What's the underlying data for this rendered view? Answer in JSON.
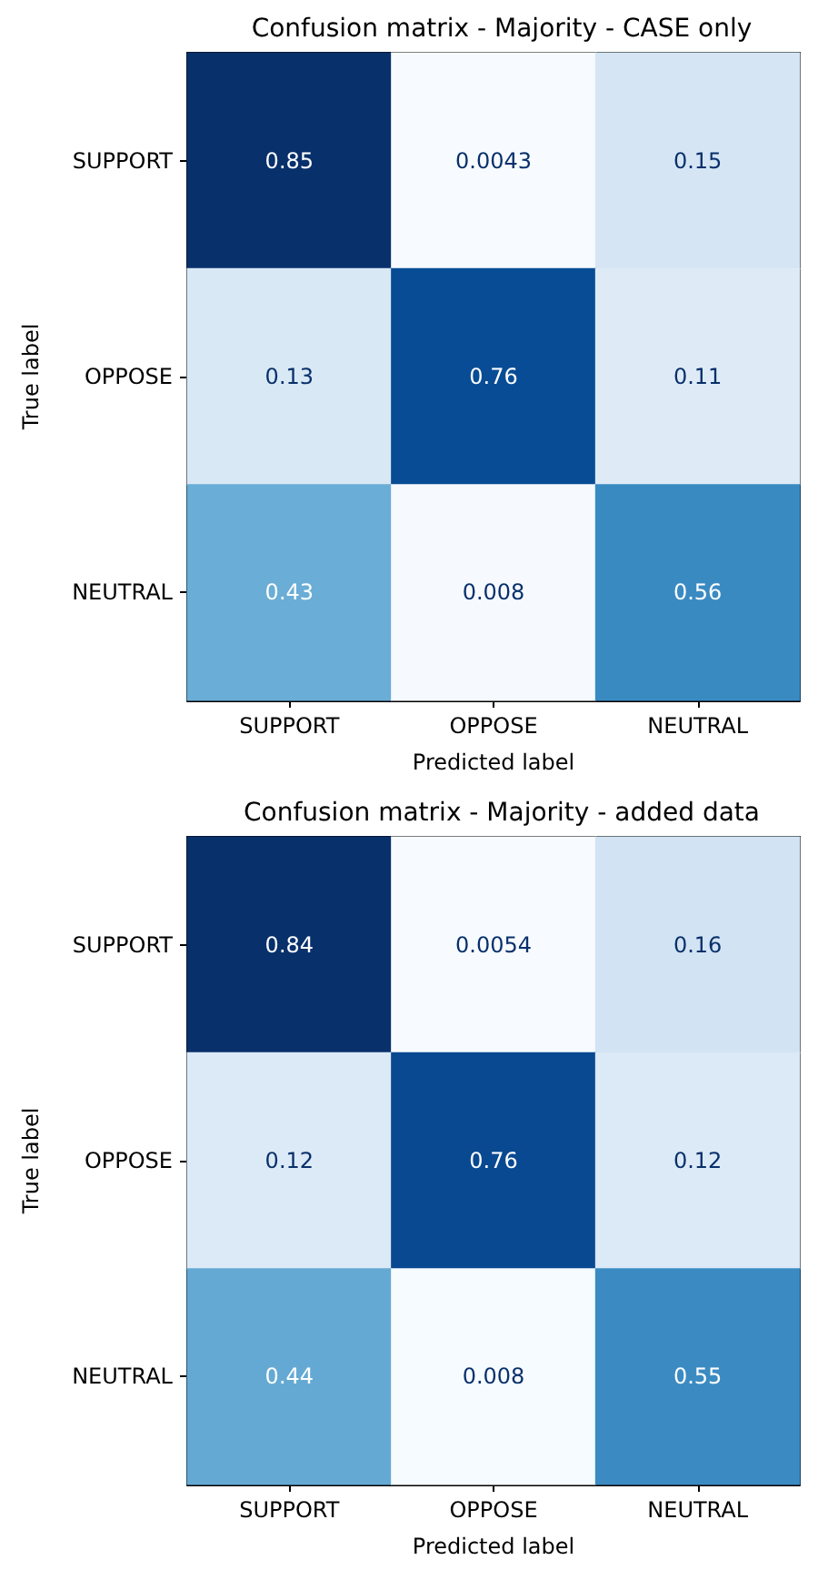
{
  "chart_data": [
    {
      "type": "heatmap",
      "data_labels": true,
      "title": "Confusion matrix - Majority - CASE only",
      "xlabel": "Predicted label",
      "ylabel": "True label",
      "categories": [
        "SUPPORT",
        "OPPOSE",
        "NEUTRAL"
      ],
      "y_categories": [
        "SUPPORT",
        "OPPOSE",
        "NEUTRAL"
      ],
      "cells": [
        [
          0.85,
          0.0043,
          0.15
        ],
        [
          0.13,
          0.76,
          0.11
        ],
        [
          0.43,
          0.008,
          0.56
        ]
      ]
    },
    {
      "type": "heatmap",
      "data_labels": true,
      "title": "Confusion matrix - Majority - added data",
      "xlabel": "Predicted label",
      "ylabel": "True label",
      "categories": [
        "SUPPORT",
        "OPPOSE",
        "NEUTRAL"
      ],
      "y_categories": [
        "SUPPORT",
        "OPPOSE",
        "NEUTRAL"
      ],
      "cells": [
        [
          0.84,
          0.0054,
          0.16
        ],
        [
          0.12,
          0.76,
          0.12
        ],
        [
          0.44,
          0.008,
          0.55
        ]
      ]
    }
  ]
}
